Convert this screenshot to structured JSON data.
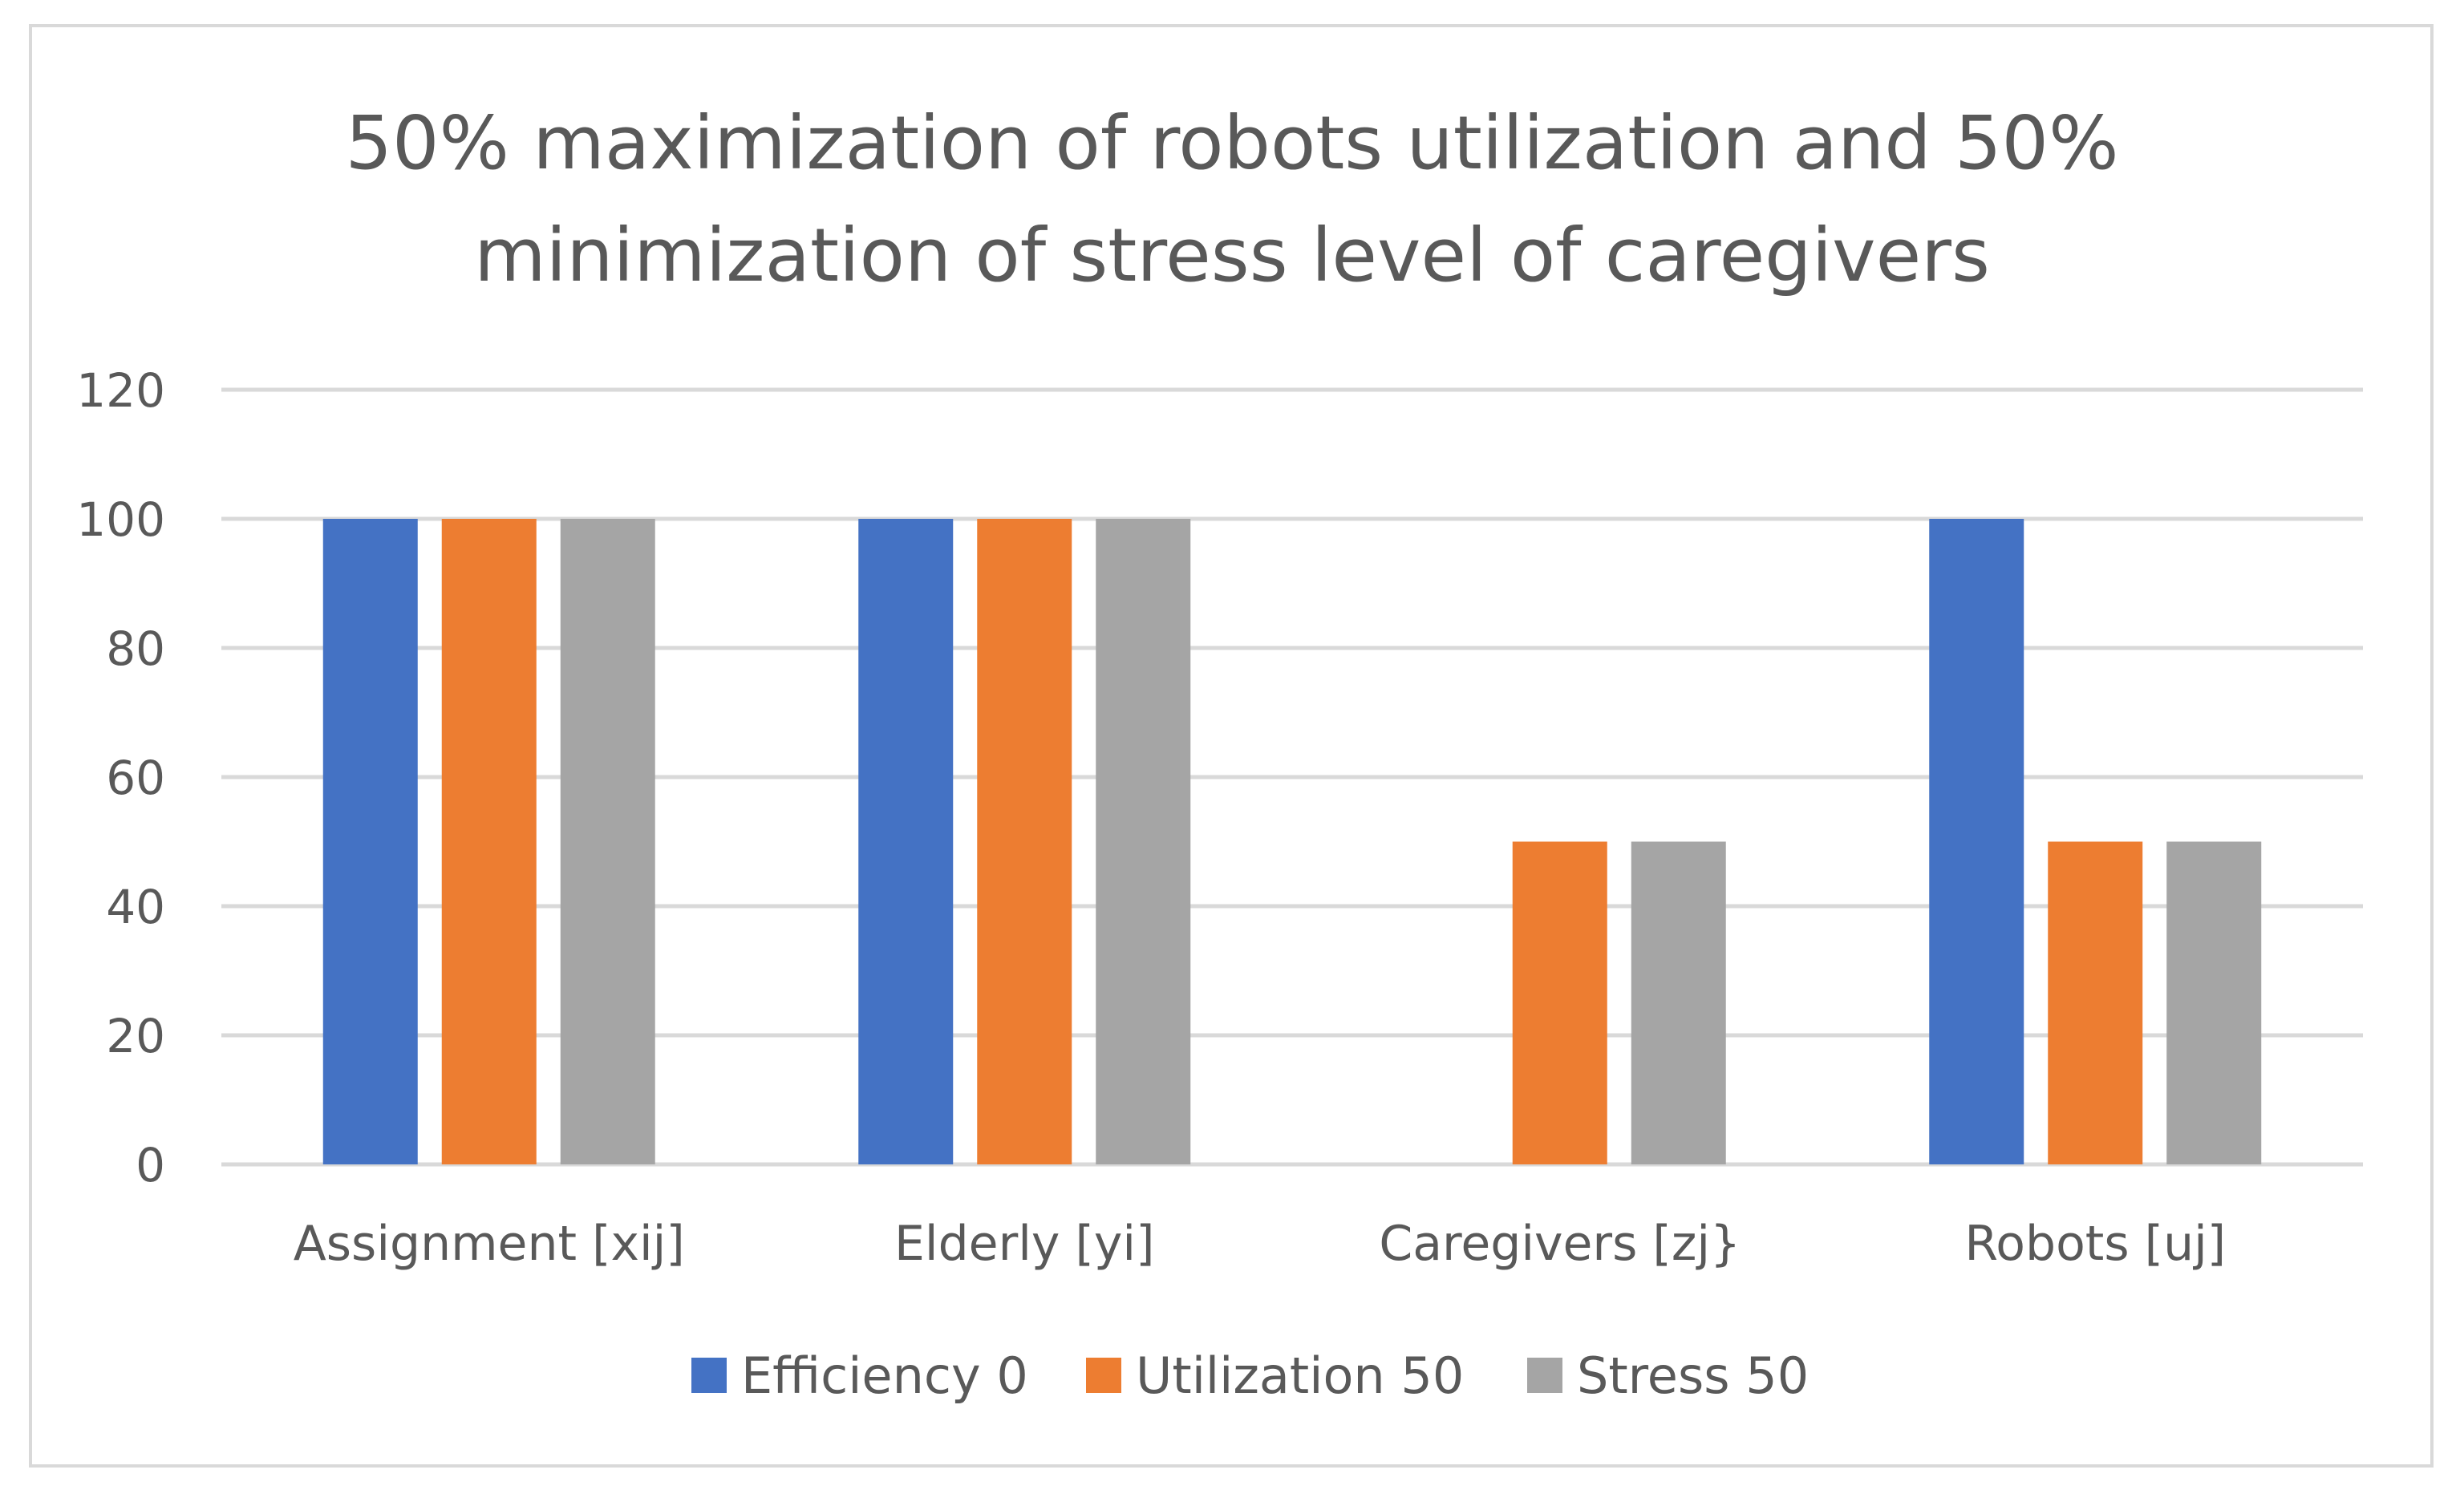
{
  "chart_data": {
    "type": "bar",
    "title_lines": [
      "50% maximization of robots utilization and 50%",
      "minimization of stress level of caregivers"
    ],
    "categories": [
      "Assignment [xij]",
      "Elderly [yi]",
      "Caregivers [zj}",
      "Robots [uj]"
    ],
    "series": [
      {
        "name": "Efficiency 0",
        "color": "#4472c4",
        "values": [
          100,
          100,
          0,
          100
        ]
      },
      {
        "name": "Utilization 50",
        "color": "#ed7d31",
        "values": [
          100,
          100,
          50,
          50
        ]
      },
      {
        "name": "Stress 50",
        "color": "#a5a5a5",
        "values": [
          100,
          100,
          50,
          50
        ]
      }
    ],
    "yticks": [
      0,
      20,
      40,
      60,
      80,
      100,
      120
    ],
    "ylim": [
      0,
      120
    ],
    "xlabel": "",
    "ylabel": "",
    "grid": true,
    "legend_position": "bottom"
  }
}
